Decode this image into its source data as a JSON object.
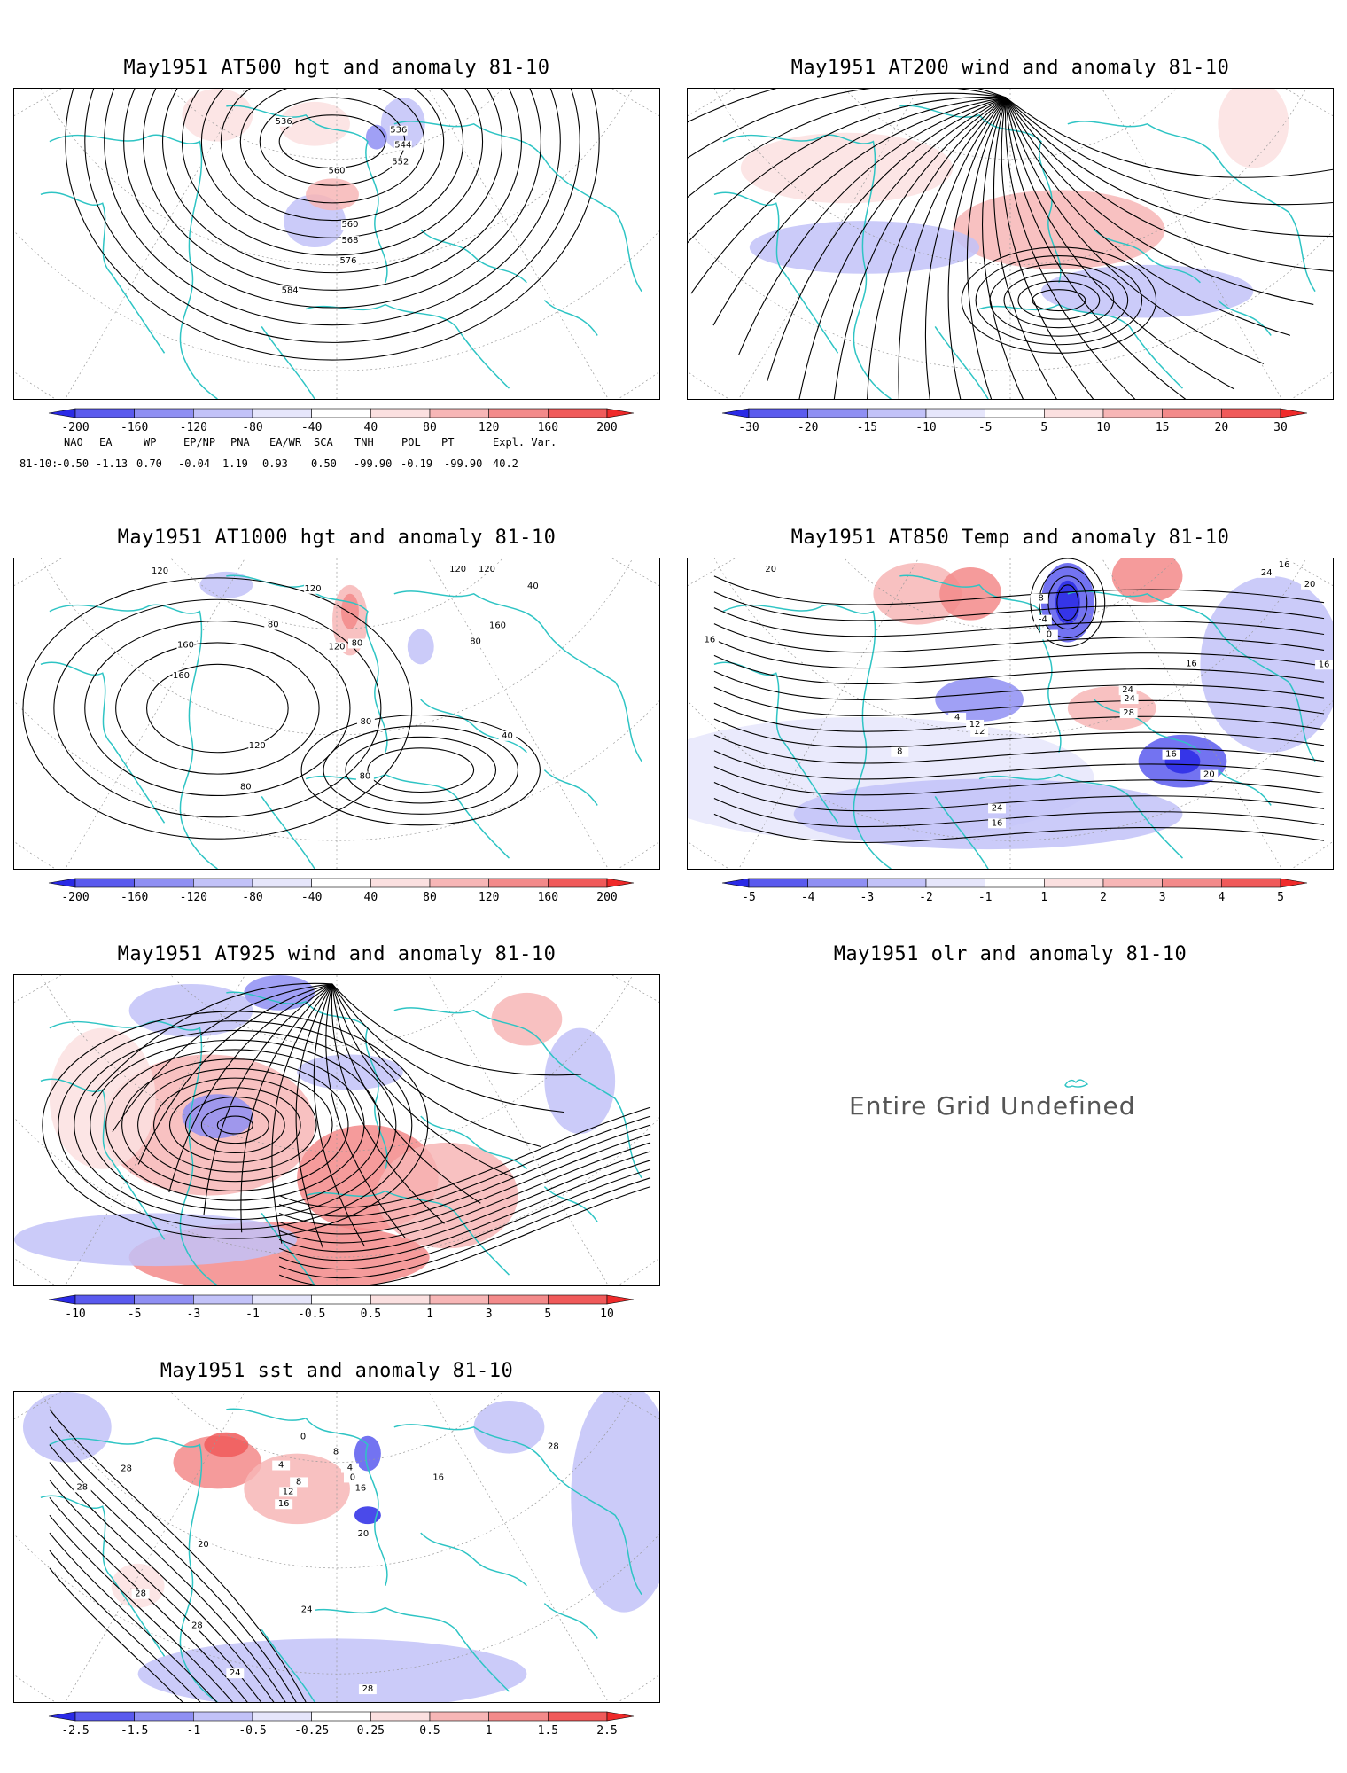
{
  "colors": {
    "coast": "#2ec4c4",
    "contour": "#000000",
    "grid": "#999999",
    "blue_scale": [
      "#2a2ae6",
      "#5a5aee",
      "#8f8ff3",
      "#c2c2f8",
      "#e6e6fb"
    ],
    "red_scale": [
      "#fbe0e0",
      "#f7b6b6",
      "#f38a8a",
      "#f05a5a",
      "#ef2a2a"
    ]
  },
  "panels": [
    {
      "id": "at500",
      "title": "May1951 AT500 hgt and anomaly 81-10",
      "contour_labels": [
        "536",
        "544",
        "552",
        "560",
        "536",
        "560",
        "568",
        "576",
        "584"
      ],
      "colorbar": [
        "-200",
        "-160",
        "-120",
        "-80",
        "-40",
        "40",
        "80",
        "120",
        "160",
        "200"
      ]
    },
    {
      "id": "at200",
      "title": "May1951 AT200 wind and anomaly 81-10",
      "contour_labels": [],
      "colorbar": [
        "-30",
        "-20",
        "-15",
        "-10",
        "-5",
        "5",
        "10",
        "15",
        "20",
        "30"
      ]
    },
    {
      "id": "at1000",
      "title": "May1951 AT1000 hgt and anomaly 81-10",
      "contour_labels": [
        "120",
        "120",
        "80",
        "160",
        "120",
        "160",
        "120",
        "80",
        "80",
        "160",
        "120",
        "40",
        "80",
        "80",
        "40",
        "80",
        "120"
      ],
      "colorbar": [
        "-200",
        "-160",
        "-120",
        "-80",
        "-40",
        "40",
        "80",
        "120",
        "160",
        "200"
      ]
    },
    {
      "id": "at850",
      "title": "May1951 AT850 Temp and anomaly 81-10",
      "contour_labels": [
        "20",
        "16",
        "16",
        "12",
        "8",
        "4",
        "-8",
        "-4",
        "0",
        "16",
        "24",
        "24",
        "28",
        "24",
        "16",
        "12",
        "16",
        "20",
        "24",
        "20",
        "16"
      ],
      "colorbar": [
        "-5",
        "-4",
        "-3",
        "-2",
        "-1",
        "1",
        "2",
        "3",
        "4",
        "5"
      ]
    },
    {
      "id": "at925",
      "title": "May1951 AT925 wind and anomaly 81-10",
      "contour_labels": [],
      "colorbar": [
        "-10",
        "-5",
        "-3",
        "-1",
        "-0.5",
        "0.5",
        "1",
        "3",
        "5",
        "10"
      ]
    },
    {
      "id": "olr",
      "title": "May1951 olr and anomaly 81-10",
      "message": "Entire Grid Undefined"
    },
    {
      "id": "sst",
      "title": "May1951 sst and anomaly 81-10",
      "contour_labels": [
        "24",
        "28",
        "28",
        "20",
        "16",
        "12",
        "8",
        "4",
        "0",
        "8",
        "0",
        "4",
        "16",
        "20",
        "28",
        "16",
        "24",
        "28",
        "28",
        "28"
      ],
      "colorbar": [
        "-2.5",
        "-1.5",
        "-1",
        "-0.5",
        "-0.25",
        "0.25",
        "0.5",
        "1",
        "1.5",
        "2.5"
      ]
    }
  ],
  "teleconnections": {
    "headers": [
      "NAO",
      "EA",
      "WP",
      "EP/NP",
      "PNA",
      "EA/WR",
      "SCA",
      "TNH",
      "POL",
      "PT",
      "Expl. Var."
    ],
    "row_label": "81-10:",
    "values": [
      "-0.50",
      "-1.13",
      "0.70",
      "-0.04",
      "1.19",
      "0.93",
      "0.50",
      "-99.90",
      "-0.19",
      "-99.90",
      "40.2"
    ]
  }
}
